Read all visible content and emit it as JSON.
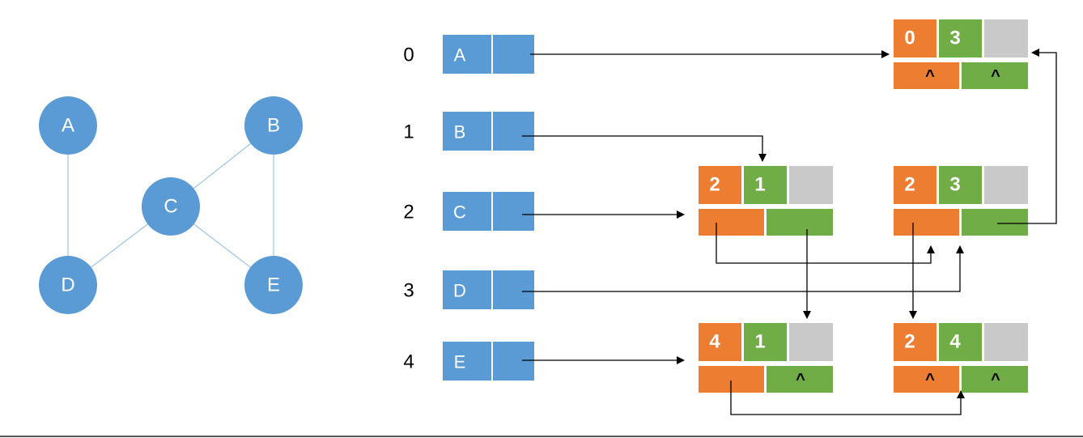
{
  "colors": {
    "node_fill": "#5b9bd5",
    "orange": "#ed7d31",
    "green": "#70ad47",
    "gray": "#c9c9c9",
    "edge": "#9dc3e6",
    "arrow": "#000000",
    "white_text": "#ffffff"
  },
  "graph": {
    "nodes": [
      {
        "id": "A",
        "label": "A"
      },
      {
        "id": "B",
        "label": "B"
      },
      {
        "id": "C",
        "label": "C"
      },
      {
        "id": "D",
        "label": "D"
      },
      {
        "id": "E",
        "label": "E"
      }
    ],
    "edges": [
      [
        "A",
        "D"
      ],
      [
        "B",
        "C"
      ],
      [
        "B",
        "E"
      ],
      [
        "C",
        "D"
      ],
      [
        "C",
        "E"
      ]
    ]
  },
  "vertex_table": [
    {
      "index": "0",
      "label": "A"
    },
    {
      "index": "1",
      "label": "B"
    },
    {
      "index": "2",
      "label": "C"
    },
    {
      "index": "3",
      "label": "D"
    },
    {
      "index": "4",
      "label": "E"
    }
  ],
  "edge_nodes": [
    {
      "id": "n03",
      "i": "0",
      "j": "3",
      "ilink": "^",
      "jlink": "^"
    },
    {
      "id": "n21",
      "i": "2",
      "j": "1",
      "ilink": "",
      "jlink": ""
    },
    {
      "id": "n23",
      "i": "2",
      "j": "3",
      "ilink": "",
      "jlink": ""
    },
    {
      "id": "n41",
      "i": "4",
      "j": "1",
      "ilink": "",
      "jlink": "^"
    },
    {
      "id": "n24",
      "i": "2",
      "j": "4",
      "ilink": "^",
      "jlink": "^"
    }
  ]
}
